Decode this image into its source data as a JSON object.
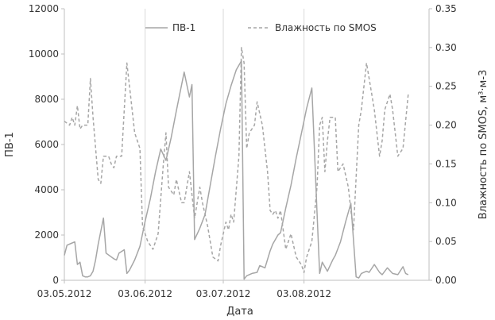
{
  "chart_data": {
    "type": "line",
    "xlabel": "Дата",
    "ylabel": "ПВ-1",
    "y2label": "Влажность по SMOS, м³·м-3",
    "xlim": [
      "2012-05-03",
      "2012-09-20"
    ],
    "ylim": [
      0,
      12000
    ],
    "y2lim": [
      0,
      0.35
    ],
    "x_ticks": [
      {
        "date": "2012-05-03",
        "label": "03.05.2012"
      },
      {
        "date": "2012-06-03",
        "label": "03.06.2012"
      },
      {
        "date": "2012-07-03",
        "label": "03.07.2012"
      },
      {
        "date": "2012-08-03",
        "label": "03.08.2012"
      }
    ],
    "y_ticks": [
      0,
      2000,
      4000,
      6000,
      8000,
      10000,
      12000
    ],
    "y2_ticks": [
      "0.00",
      "0.05",
      "0.10",
      "0.15",
      "0.20",
      "0.25",
      "0.30",
      "0.35"
    ],
    "grid": {
      "vertical": true,
      "horizontal": false
    },
    "legend_position": "top",
    "series": [
      {
        "name": "ПВ-1",
        "axis": "left",
        "style": "solid",
        "color": "#a6a6a6",
        "points": [
          [
            "2012-05-03",
            1100
          ],
          [
            "2012-05-04",
            1550
          ],
          [
            "2012-05-06",
            1650
          ],
          [
            "2012-05-07",
            1700
          ],
          [
            "2012-05-08",
            700
          ],
          [
            "2012-05-09",
            800
          ],
          [
            "2012-05-10",
            200
          ],
          [
            "2012-05-11",
            150
          ],
          [
            "2012-05-12",
            150
          ],
          [
            "2012-05-13",
            200
          ],
          [
            "2012-05-14",
            400
          ],
          [
            "2012-05-15",
            900
          ],
          [
            "2012-05-16",
            1600
          ],
          [
            "2012-05-18",
            2750
          ],
          [
            "2012-05-19",
            1200
          ],
          [
            "2012-05-22",
            950
          ],
          [
            "2012-05-23",
            900
          ],
          [
            "2012-05-24",
            1200
          ],
          [
            "2012-05-26",
            1350
          ],
          [
            "2012-05-27",
            300
          ],
          [
            "2012-05-28",
            450
          ],
          [
            "2012-05-30",
            900
          ],
          [
            "2012-06-01",
            1500
          ],
          [
            "2012-06-03",
            2600
          ],
          [
            "2012-06-05",
            3600
          ],
          [
            "2012-06-07",
            4800
          ],
          [
            "2012-06-09",
            5800
          ],
          [
            "2012-06-11",
            5300
          ],
          [
            "2012-06-13",
            6300
          ],
          [
            "2012-06-15",
            7500
          ],
          [
            "2012-06-18",
            9200
          ],
          [
            "2012-06-20",
            8100
          ],
          [
            "2012-06-21",
            8650
          ],
          [
            "2012-06-22",
            1800
          ],
          [
            "2012-06-24",
            2300
          ],
          [
            "2012-06-26",
            2900
          ],
          [
            "2012-06-28",
            4200
          ],
          [
            "2012-06-30",
            5500
          ],
          [
            "2012-07-02",
            6700
          ],
          [
            "2012-07-04",
            7800
          ],
          [
            "2012-07-06",
            8600
          ],
          [
            "2012-07-08",
            9300
          ],
          [
            "2012-07-10",
            9700
          ],
          [
            "2012-07-11",
            50
          ],
          [
            "2012-07-12",
            200
          ],
          [
            "2012-07-14",
            300
          ],
          [
            "2012-07-16",
            350
          ],
          [
            "2012-07-17",
            650
          ],
          [
            "2012-07-19",
            550
          ],
          [
            "2012-07-21",
            1300
          ],
          [
            "2012-07-22",
            1600
          ],
          [
            "2012-07-24",
            2000
          ],
          [
            "2012-07-25",
            2100
          ],
          [
            "2012-07-27",
            3200
          ],
          [
            "2012-07-29",
            4200
          ],
          [
            "2012-07-31",
            5400
          ],
          [
            "2012-08-02",
            6500
          ],
          [
            "2012-08-04",
            7600
          ],
          [
            "2012-08-06",
            8500
          ],
          [
            "2012-08-08",
            3000
          ],
          [
            "2012-08-09",
            300
          ],
          [
            "2012-08-10",
            800
          ],
          [
            "2012-08-12",
            400
          ],
          [
            "2012-08-14",
            900
          ],
          [
            "2012-08-15",
            1100
          ],
          [
            "2012-08-17",
            1700
          ],
          [
            "2012-08-19",
            2600
          ],
          [
            "2012-08-21",
            3400
          ],
          [
            "2012-08-23",
            150
          ],
          [
            "2012-08-24",
            100
          ],
          [
            "2012-08-25",
            300
          ],
          [
            "2012-08-27",
            400
          ],
          [
            "2012-08-28",
            350
          ],
          [
            "2012-08-30",
            700
          ],
          [
            "2012-09-01",
            350
          ],
          [
            "2012-09-02",
            250
          ],
          [
            "2012-09-04",
            550
          ],
          [
            "2012-09-06",
            300
          ],
          [
            "2012-09-08",
            250
          ],
          [
            "2012-09-10",
            600
          ],
          [
            "2012-09-11",
            300
          ],
          [
            "2012-09-12",
            250
          ]
        ]
      },
      {
        "name": "Влажность по SMOS",
        "axis": "right",
        "style": "dashed",
        "color": "#a6a6a6",
        "points": [
          [
            "2012-05-03",
            0.205
          ],
          [
            "2012-05-05",
            0.2
          ],
          [
            "2012-05-06",
            0.21
          ],
          [
            "2012-05-07",
            0.2
          ],
          [
            "2012-05-08",
            0.225
          ],
          [
            "2012-05-09",
            0.195
          ],
          [
            "2012-05-10",
            0.2
          ],
          [
            "2012-05-12",
            0.2
          ],
          [
            "2012-05-13",
            0.26
          ],
          [
            "2012-05-14",
            0.21
          ],
          [
            "2012-05-16",
            0.13
          ],
          [
            "2012-05-17",
            0.125
          ],
          [
            "2012-05-18",
            0.16
          ],
          [
            "2012-05-20",
            0.16
          ],
          [
            "2012-05-21",
            0.15
          ],
          [
            "2012-05-22",
            0.145
          ],
          [
            "2012-05-23",
            0.16
          ],
          [
            "2012-05-25",
            0.16
          ],
          [
            "2012-05-27",
            0.28
          ],
          [
            "2012-05-28",
            0.25
          ],
          [
            "2012-05-30",
            0.19
          ],
          [
            "2012-06-01",
            0.17
          ],
          [
            "2012-06-02",
            0.07
          ],
          [
            "2012-06-04",
            0.05
          ],
          [
            "2012-06-06",
            0.04
          ],
          [
            "2012-06-08",
            0.06
          ],
          [
            "2012-06-10",
            0.15
          ],
          [
            "2012-06-11",
            0.19
          ],
          [
            "2012-06-12",
            0.12
          ],
          [
            "2012-06-14",
            0.11
          ],
          [
            "2012-06-15",
            0.13
          ],
          [
            "2012-06-17",
            0.1
          ],
          [
            "2012-06-18",
            0.1
          ],
          [
            "2012-06-20",
            0.14
          ],
          [
            "2012-06-22",
            0.08
          ],
          [
            "2012-06-24",
            0.12
          ],
          [
            "2012-06-25",
            0.1
          ],
          [
            "2012-06-27",
            0.07
          ],
          [
            "2012-06-29",
            0.03
          ],
          [
            "2012-07-01",
            0.025
          ],
          [
            "2012-07-02",
            0.045
          ],
          [
            "2012-07-04",
            0.075
          ],
          [
            "2012-07-05",
            0.065
          ],
          [
            "2012-07-06",
            0.085
          ],
          [
            "2012-07-07",
            0.075
          ],
          [
            "2012-07-09",
            0.16
          ],
          [
            "2012-07-10",
            0.3
          ],
          [
            "2012-07-11",
            0.28
          ],
          [
            "2012-07-12",
            0.17
          ],
          [
            "2012-07-13",
            0.19
          ],
          [
            "2012-07-15",
            0.2
          ],
          [
            "2012-07-16",
            0.23
          ],
          [
            "2012-07-18",
            0.2
          ],
          [
            "2012-07-20",
            0.14
          ],
          [
            "2012-07-21",
            0.09
          ],
          [
            "2012-07-22",
            0.085
          ],
          [
            "2012-07-23",
            0.09
          ],
          [
            "2012-07-24",
            0.08
          ],
          [
            "2012-07-25",
            0.09
          ],
          [
            "2012-07-27",
            0.04
          ],
          [
            "2012-07-29",
            0.06
          ],
          [
            "2012-07-31",
            0.03
          ],
          [
            "2012-08-02",
            0.02
          ],
          [
            "2012-08-03",
            0.01
          ],
          [
            "2012-08-04",
            0.03
          ],
          [
            "2012-08-06",
            0.05
          ],
          [
            "2012-08-08",
            0.12
          ],
          [
            "2012-08-09",
            0.2
          ],
          [
            "2012-08-10",
            0.21
          ],
          [
            "2012-08-11",
            0.14
          ],
          [
            "2012-08-12",
            0.18
          ],
          [
            "2012-08-13",
            0.21
          ],
          [
            "2012-08-15",
            0.21
          ],
          [
            "2012-08-16",
            0.14
          ],
          [
            "2012-08-18",
            0.15
          ],
          [
            "2012-08-20",
            0.12
          ],
          [
            "2012-08-21",
            0.09
          ],
          [
            "2012-08-22",
            0.065
          ],
          [
            "2012-08-24",
            0.2
          ],
          [
            "2012-08-25",
            0.22
          ],
          [
            "2012-08-27",
            0.28
          ],
          [
            "2012-08-28",
            0.26
          ],
          [
            "2012-08-30",
            0.22
          ],
          [
            "2012-09-01",
            0.16
          ],
          [
            "2012-09-02",
            0.18
          ],
          [
            "2012-09-03",
            0.22
          ],
          [
            "2012-09-05",
            0.24
          ],
          [
            "2012-09-06",
            0.22
          ],
          [
            "2012-09-08",
            0.16
          ],
          [
            "2012-09-10",
            0.17
          ],
          [
            "2012-09-12",
            0.24
          ]
        ]
      }
    ]
  }
}
